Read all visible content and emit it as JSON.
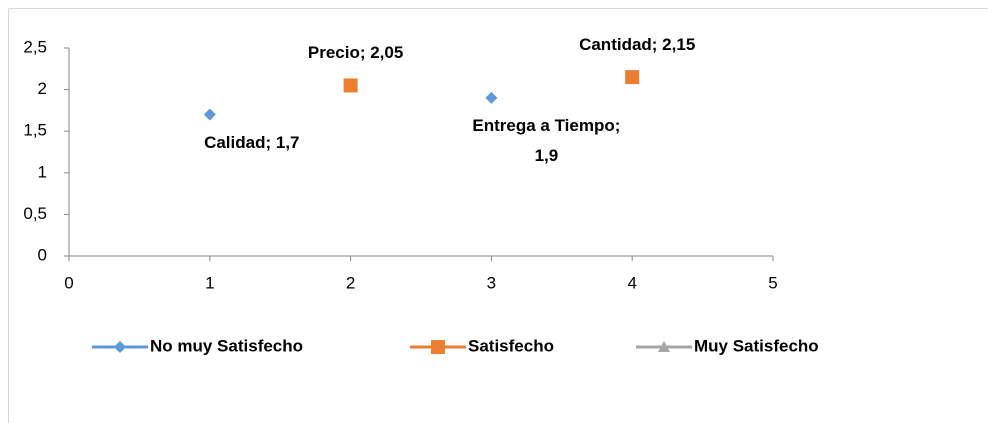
{
  "chart_data": {
    "type": "scatter",
    "series": [
      {
        "name": "No muy Satisfecho",
        "color": "#5b9bd5",
        "marker": "diamond",
        "x": [
          1,
          3
        ],
        "values": [
          1.7,
          1.9
        ],
        "value_labels": [
          "Calidad; 1,7",
          "Entrega a Tiempo; 1,9"
        ]
      },
      {
        "name": "Satisfecho",
        "color": "#ed7d31",
        "marker": "square",
        "x": [
          2,
          4
        ],
        "values": [
          2.05,
          2.15
        ],
        "value_labels": [
          "Precio; 2,05",
          "Cantidad; 2,15"
        ]
      },
      {
        "name": "Muy Satisfecho",
        "color": "#a5a5a5",
        "marker": "triangle",
        "x": [],
        "values": [],
        "value_labels": []
      }
    ],
    "xlim": [
      0,
      5
    ],
    "xticks": [
      0,
      1,
      2,
      3,
      4,
      5
    ],
    "ylim": [
      0,
      2.5
    ],
    "yticks": [
      0,
      {
        "value": 0.5,
        "label": "0,5"
      },
      1,
      {
        "value": 1.5,
        "label": "1,5"
      },
      2,
      {
        "value": 2.5,
        "label": "2,5"
      }
    ],
    "grid": false,
    "legend": "bottom"
  }
}
